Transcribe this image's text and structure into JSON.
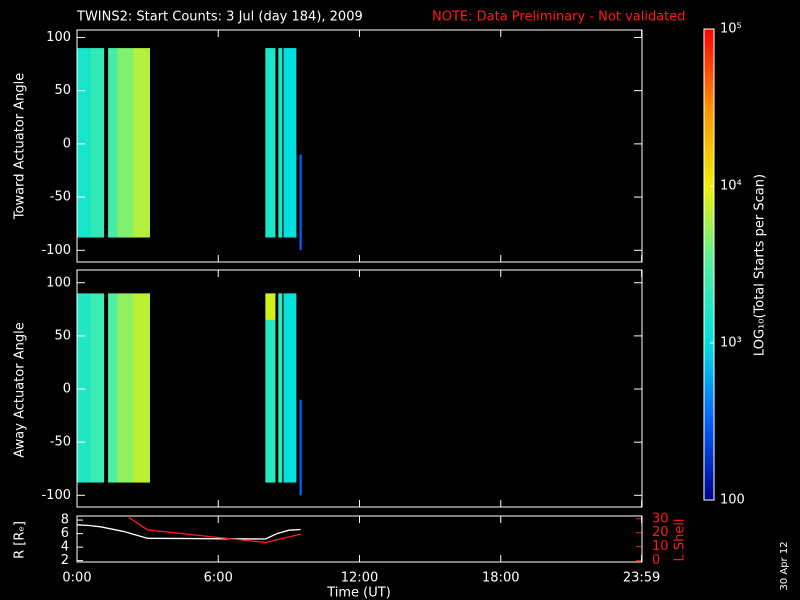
{
  "chart_data": [
    {
      "type": "heatmap",
      "title": "TWINS2: Start Counts:  3 Jul (day 184), 2009",
      "subtitle": "NOTE: Data Preliminary - Not validated",
      "ylabel": "Toward Actuator Angle",
      "xlim": [
        0,
        24
      ],
      "ylim": [
        -111,
        107
      ],
      "yticks": [
        -100,
        -50,
        0,
        50,
        100
      ],
      "zscale": "log",
      "zlim": [
        100,
        100000
      ],
      "zticks": [
        {
          "value": 100,
          "label": "100"
        },
        {
          "value": 1000,
          "label": "10³"
        },
        {
          "value": 10000,
          "label": "10⁴"
        },
        {
          "value": 100000,
          "label": "10⁵"
        }
      ],
      "zlabel": "LOG₁₀(Total Starts per Scan)",
      "colormap": [
        "#00008c",
        "#0060ff",
        "#00e0e0",
        "#50f0a0",
        "#f0f000",
        "#ff9000",
        "#ff0000"
      ],
      "blocks": [
        {
          "x": [
            0.0,
            0.55
          ],
          "y": [
            -88,
            90
          ],
          "value": 1400
        },
        {
          "x": [
            0.55,
            1.15
          ],
          "y": [
            -88,
            90
          ],
          "value": 2000
        },
        {
          "x": [
            1.32,
            1.7
          ],
          "y": [
            -88,
            90
          ],
          "value": 2600
        },
        {
          "x": [
            1.7,
            2.4
          ],
          "y": [
            -88,
            90
          ],
          "value": 4500
        },
        {
          "x": [
            2.4,
            3.1
          ],
          "y": [
            -88,
            90
          ],
          "value": 6500
        },
        {
          "x": [
            8.0,
            8.43
          ],
          "y": [
            -88,
            90
          ],
          "value": 1500
        },
        {
          "x": [
            8.55,
            8.72
          ],
          "y": [
            -88,
            90
          ],
          "value": 1500
        },
        {
          "x": [
            8.77,
            9.32
          ],
          "y": [
            -88,
            90
          ],
          "value": 1000
        },
        {
          "x": [
            9.45,
            9.55
          ],
          "y": [
            -100,
            -10
          ],
          "value": 300
        }
      ]
    },
    {
      "type": "heatmap",
      "ylabel": "Away Actuator Angle",
      "xlim": [
        0,
        24
      ],
      "ylim": [
        -111,
        112
      ],
      "yticks": [
        -100,
        -50,
        0,
        50,
        100
      ],
      "blocks": [
        {
          "x": [
            0.0,
            0.55
          ],
          "y": [
            -88,
            90
          ],
          "value": 1600
        },
        {
          "x": [
            0.55,
            1.15
          ],
          "y": [
            -88,
            90
          ],
          "value": 2300
        },
        {
          "x": [
            1.32,
            1.7
          ],
          "y": [
            -88,
            90
          ],
          "value": 3000
        },
        {
          "x": [
            1.7,
            2.4
          ],
          "y": [
            -88,
            90
          ],
          "value": 5000
        },
        {
          "x": [
            2.4,
            3.1
          ],
          "y": [
            -88,
            90
          ],
          "value": 7000
        },
        {
          "x": [
            8.0,
            8.43
          ],
          "y": [
            -88,
            65
          ],
          "value": 1800
        },
        {
          "x": [
            8.0,
            8.43
          ],
          "y": [
            65,
            90
          ],
          "value": 8000
        },
        {
          "x": [
            8.55,
            8.72
          ],
          "y": [
            -88,
            90
          ],
          "value": 2000
        },
        {
          "x": [
            8.77,
            9.32
          ],
          "y": [
            -88,
            90
          ],
          "value": 1100
        },
        {
          "x": [
            9.45,
            9.55
          ],
          "y": [
            -100,
            -10
          ],
          "value": 300
        }
      ]
    },
    {
      "type": "line",
      "ylabel": "R [Rₑ]",
      "y2label": "L Shell",
      "xlabel": "Time (UT)",
      "xlim": [
        0,
        24
      ],
      "xticks": [
        {
          "value": 0,
          "label": "0:00"
        },
        {
          "value": 6,
          "label": "6:00"
        },
        {
          "value": 12,
          "label": "12:00"
        },
        {
          "value": 18,
          "label": "18:00"
        },
        {
          "value": 23.983,
          "label": "23:59"
        }
      ],
      "ylim": [
        1.8,
        8.6
      ],
      "yticks": [
        2,
        4,
        6,
        8
      ],
      "y2lim": [
        -1,
        32
      ],
      "y2ticks": [
        0,
        10,
        20,
        30
      ],
      "series": [
        {
          "color": "#ffffff",
          "x": [
            0,
            0.5,
            1,
            2,
            3,
            8,
            8.5,
            9,
            9.5
          ],
          "values": [
            7.3,
            7.2,
            7.0,
            6.3,
            5.3,
            5.2,
            6.0,
            6.5,
            6.6
          ]
        },
        {
          "color": "#ff1a1a",
          "axis": "y2",
          "x": [
            2.2,
            3,
            8,
            9.5
          ],
          "values": [
            31,
            22,
            13,
            19
          ]
        }
      ],
      "annotation": "30 Apr 12"
    }
  ]
}
